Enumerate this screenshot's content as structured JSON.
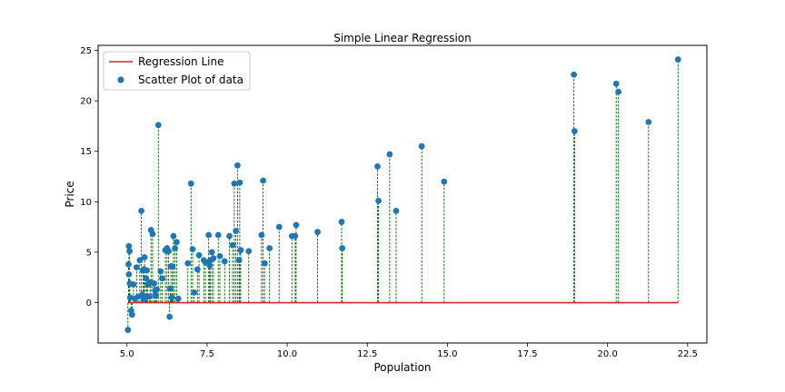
{
  "chart_data": {
    "type": "scatter",
    "title": "Simple Linear Regression",
    "xlabel": "Population",
    "ylabel": "Price",
    "xlim": [
      4.1,
      23.1
    ],
    "ylim": [
      -4.0,
      25.5
    ],
    "xticks": [
      5.0,
      7.5,
      10.0,
      12.5,
      15.0,
      17.5,
      20.0,
      22.5
    ],
    "xtick_labels": [
      "5.0",
      "7.5",
      "10.0",
      "12.5",
      "15.0",
      "17.5",
      "20.0",
      "22.5"
    ],
    "yticks": [
      0,
      5,
      10,
      15,
      20,
      25
    ],
    "ytick_labels": [
      "0",
      "5",
      "10",
      "15",
      "20",
      "25"
    ],
    "grid": false,
    "legend": {
      "placement": "top-left",
      "entries": [
        "Regression Line",
        "Scatter Plot of data"
      ]
    },
    "colors": {
      "scatter": "#1f77b4",
      "regression": "#d62728",
      "residual": "#006400"
    },
    "series": [
      {
        "name": "Regression Line",
        "kind": "line",
        "x": [
          5.03,
          22.2
        ],
        "y": [
          0,
          0
        ]
      },
      {
        "name": "Scatter Plot of data",
        "kind": "scatter",
        "x": [
          5.03,
          5.05,
          5.06,
          5.06,
          5.08,
          5.09,
          5.1,
          5.13,
          5.16,
          5.2,
          5.25,
          5.3,
          5.35,
          5.4,
          5.45,
          5.48,
          5.5,
          5.52,
          5.53,
          5.55,
          5.58,
          5.6,
          5.62,
          5.65,
          5.7,
          5.72,
          5.75,
          5.8,
          5.85,
          5.88,
          5.9,
          5.93,
          5.98,
          6.05,
          6.1,
          6.2,
          6.25,
          6.3,
          6.33,
          6.35,
          6.37,
          6.4,
          6.42,
          6.45,
          6.5,
          6.55,
          6.6,
          6.9,
          7.0,
          7.05,
          7.1,
          7.2,
          7.25,
          7.4,
          7.45,
          7.55,
          7.58,
          7.6,
          7.65,
          7.7,
          7.85,
          7.9,
          8.05,
          8.2,
          8.3,
          8.35,
          8.4,
          8.45,
          8.5,
          8.52,
          8.55,
          8.8,
          9.2,
          9.25,
          9.3,
          9.45,
          9.75,
          10.15,
          10.25,
          10.28,
          10.95,
          11.7,
          11.72,
          12.82,
          12.85,
          13.2,
          13.4,
          14.2,
          14.9,
          18.95,
          18.97,
          20.27,
          20.34,
          21.28,
          22.2
        ],
        "y": [
          -2.7,
          3.8,
          5.6,
          2.8,
          5.1,
          1.9,
          0.5,
          -0.8,
          -1.2,
          1.8,
          0.4,
          3.5,
          0.6,
          4.2,
          9.1,
          0.8,
          3.2,
          0.3,
          3.3,
          4.5,
          0.5,
          2.4,
          3.2,
          1.8,
          0.6,
          2.0,
          7.2,
          6.8,
          1.9,
          1.2,
          0.7,
          1.3,
          17.6,
          3.1,
          2.4,
          5.2,
          5.4,
          5.1,
          -1.4,
          1.4,
          3.6,
          0.5,
          3.6,
          6.6,
          5.4,
          6.0,
          0.4,
          3.9,
          11.8,
          5.3,
          1.0,
          3.3,
          4.7,
          4.2,
          4.0,
          6.7,
          3.7,
          4.2,
          5.0,
          4.4,
          6.7,
          4.6,
          4.1,
          6.6,
          5.7,
          11.8,
          7.1,
          13.6,
          4.2,
          11.9,
          5.2,
          5.1,
          6.7,
          12.1,
          3.9,
          5.4,
          7.5,
          6.6,
          6.6,
          7.7,
          7.0,
          8.0,
          5.4,
          13.5,
          10.1,
          14.7,
          9.1,
          15.5,
          12.0,
          22.6,
          17.0,
          21.7,
          20.9,
          17.9,
          24.1
        ]
      }
    ]
  }
}
